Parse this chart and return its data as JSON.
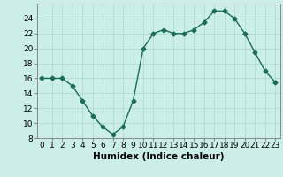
{
  "x": [
    0,
    1,
    2,
    3,
    4,
    5,
    6,
    7,
    8,
    9,
    10,
    11,
    12,
    13,
    14,
    15,
    16,
    17,
    18,
    19,
    20,
    21,
    22,
    23
  ],
  "y": [
    16,
    16,
    16,
    15,
    13,
    11,
    9.5,
    8.5,
    9.5,
    13,
    20,
    22,
    22.5,
    22,
    22,
    22.5,
    23.5,
    25,
    25,
    24,
    22,
    19.5,
    17,
    15.5
  ],
  "line_color": "#1a6b5a",
  "marker": "D",
  "marker_size": 2.5,
  "bg_color": "#cceee8",
  "grid_color": "#aad8d0",
  "xlabel": "Humidex (Indice chaleur)",
  "xlim": [
    -0.5,
    23.5
  ],
  "ylim": [
    8,
    26
  ],
  "yticks": [
    8,
    10,
    12,
    14,
    16,
    18,
    20,
    22,
    24
  ],
  "xticks": [
    0,
    1,
    2,
    3,
    4,
    5,
    6,
    7,
    8,
    9,
    10,
    11,
    12,
    13,
    14,
    15,
    16,
    17,
    18,
    19,
    20,
    21,
    22,
    23
  ],
  "tick_label_fontsize": 6.5,
  "xlabel_fontsize": 7.5
}
